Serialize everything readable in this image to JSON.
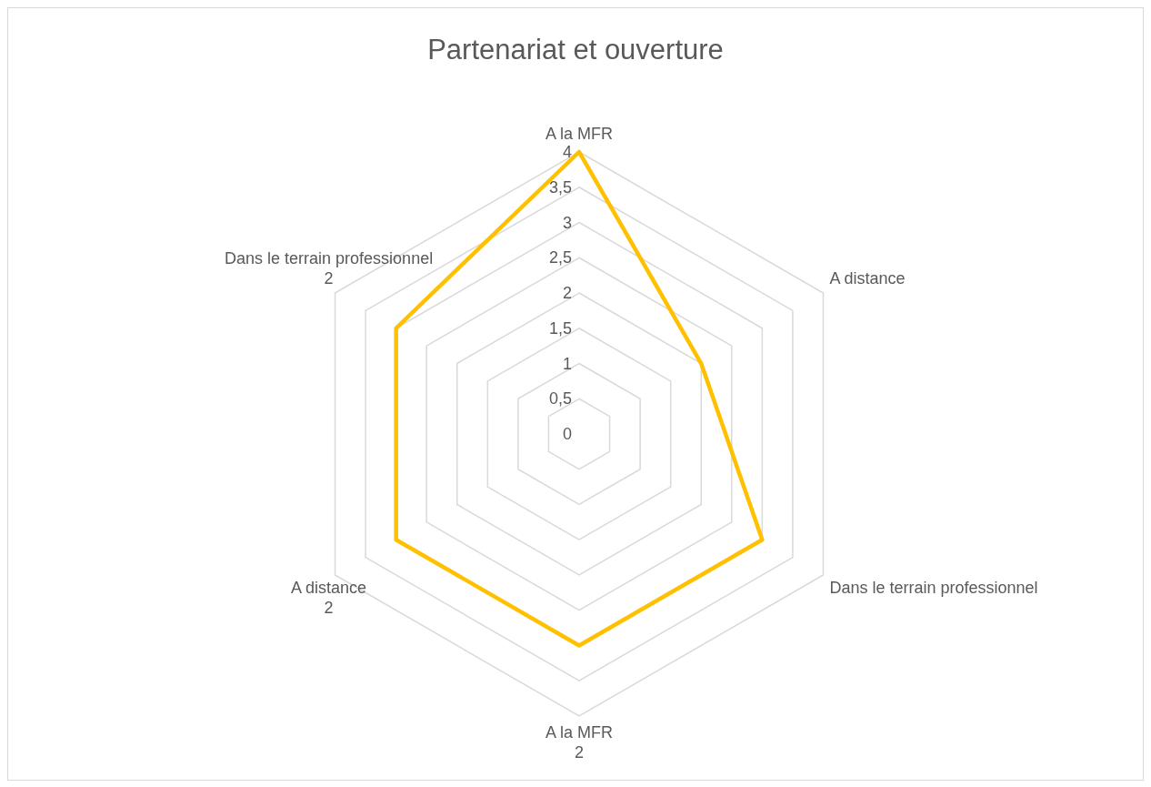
{
  "chart_data": {
    "type": "radar",
    "title": "Partenariat et ouverture",
    "categories": [
      "A la MFR",
      "A distance",
      "Dans le terrain professionnel",
      "A la MFR\n2",
      "A distance\n2",
      "Dans le terrain professionnel\n2"
    ],
    "series": [
      {
        "color": "#ffc000",
        "values": [
          4,
          2,
          3,
          3,
          3,
          3
        ]
      }
    ],
    "ylim": [
      0,
      4
    ],
    "yticks": [
      0,
      {
        "value": 0.5,
        "label": "0,5"
      },
      1,
      {
        "value": 1.5,
        "label": "1,5"
      },
      2,
      {
        "value": 2.5,
        "label": "2,5"
      },
      3,
      {
        "value": 3.5,
        "label": "3,5"
      },
      4
    ],
    "grid": true,
    "marker": "none",
    "line_style": "solid"
  }
}
